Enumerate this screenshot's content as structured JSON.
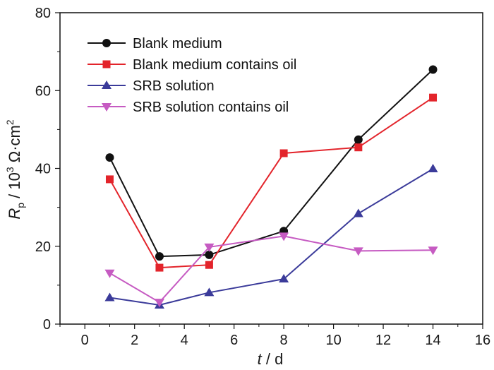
{
  "chart_data": {
    "type": "line",
    "x": [
      1,
      3,
      5,
      8,
      11,
      14
    ],
    "series": [
      {
        "name": "Blank medium",
        "values": [
          42.8,
          17.4,
          17.8,
          23.9,
          47.4,
          65.4
        ],
        "color": "#111111",
        "marker": "circle"
      },
      {
        "name": "Blank medium contains oil",
        "values": [
          37.2,
          14.5,
          15.2,
          43.9,
          45.4,
          58.2
        ],
        "color": "#e3242b",
        "marker": "square"
      },
      {
        "name": "SRB solution",
        "values": [
          6.8,
          4.9,
          8.1,
          11.6,
          28.4,
          39.9
        ],
        "color": "#3b3b9a",
        "marker": "triangle-up"
      },
      {
        "name": "SRB solution contains oil",
        "values": [
          13.1,
          5.6,
          19.8,
          22.6,
          18.8,
          19.0
        ],
        "color": "#c65bc2",
        "marker": "triangle-down"
      }
    ],
    "xlabel": {
      "var": "t",
      "unit": " / d"
    },
    "ylabel": {
      "var": "R",
      "sub": "p",
      "unit": " / 10",
      "exp": "3",
      "unit2": " Ω·cm",
      "exp2": "2"
    },
    "xlim": [
      -1,
      16
    ],
    "ylim": [
      0,
      80
    ],
    "xticks": [
      "0",
      "2",
      "4",
      "6",
      "8",
      "10",
      "12",
      "14",
      "16"
    ],
    "yticks": [
      "0",
      "20",
      "40",
      "60",
      "80"
    ],
    "legend": "top-left",
    "grid": false
  }
}
